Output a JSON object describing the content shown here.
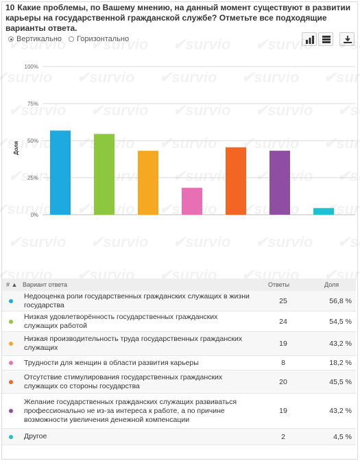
{
  "question": {
    "number": "10",
    "text": "Какие проблемы, по Вашему мнению, на данный момент существуют в развитии карьеры на государственной гражданской службе? Отметьте все подходящие варианты ответа."
  },
  "toolbar": {
    "vertical_label": "Вертикально",
    "horizontal_label": "Горизонтально",
    "selected": "vertical"
  },
  "watermark_text": "survio",
  "chart_data": {
    "type": "bar",
    "ylabel": "Доля",
    "yticks": [
      "0%",
      "25%",
      "50%",
      "75%",
      "100%"
    ],
    "ylim": [
      0,
      100
    ],
    "values": [
      56.8,
      54.5,
      43.2,
      18.2,
      45.5,
      43.2,
      4.5
    ],
    "colors": [
      "#1ea9e1",
      "#8dc63f",
      "#f7a823",
      "#e86fb4",
      "#f26522",
      "#8e4fa3",
      "#1ec0d2"
    ]
  },
  "table": {
    "headers": {
      "index": "# ▲",
      "option": "Вариант ответа",
      "count": "Ответы",
      "share": "Доля"
    },
    "rows": [
      {
        "label": "Недооценка роли государственных гражданских служащих в жизни государства",
        "count": "25",
        "share": "56,8 %",
        "color": "#1ea9e1"
      },
      {
        "label": "Низкая удовлетворённость государственных гражданских служащих работой",
        "count": "24",
        "share": "54,5 %",
        "color": "#8dc63f"
      },
      {
        "label": "Низкая производительность труда государственных гражданских служащих",
        "count": "19",
        "share": "43,2 %",
        "color": "#f7a823"
      },
      {
        "label": "Трудности для женщин в области развития карьеры",
        "count": "8",
        "share": "18,2 %",
        "color": "#e86fb4"
      },
      {
        "label": "Отсутствие стимулирования государственных гражданских служащих со стороны государства",
        "count": "20",
        "share": "45,5 %",
        "color": "#f26522"
      },
      {
        "label": "Желание государственных гражданских служащих развиваться профессионально не из-за интереса к работе, а по причине возможности увеличения денежной компенсации",
        "count": "19",
        "share": "43,2 %",
        "color": "#8e4fa3"
      },
      {
        "label": "Другое",
        "count": "2",
        "share": "4,5 %",
        "color": "#1ec0d2"
      }
    ]
  }
}
